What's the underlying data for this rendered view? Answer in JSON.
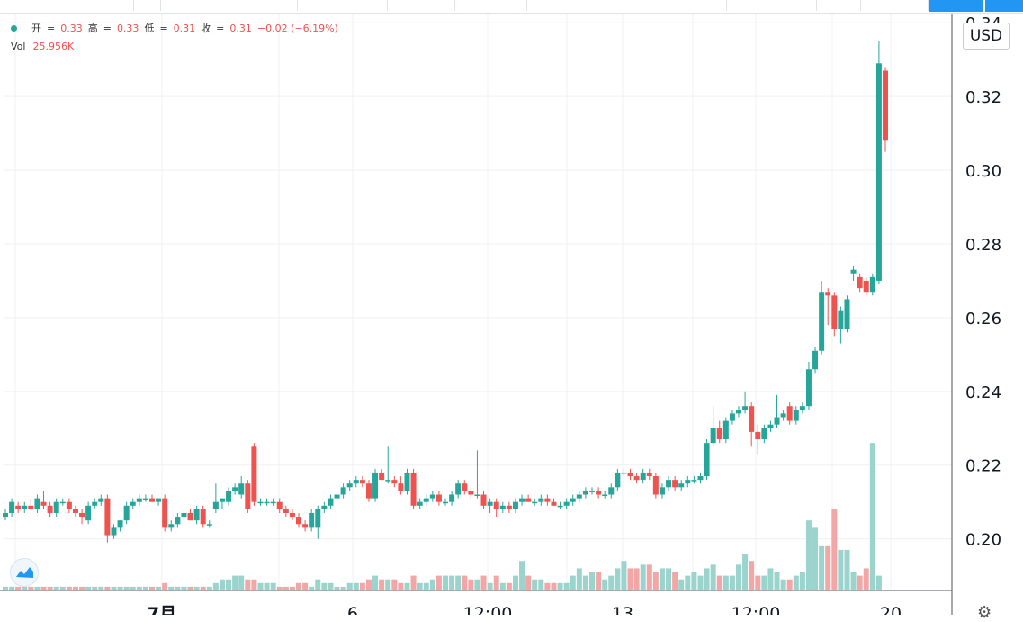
{
  "toolbar": {
    "items": [
      "↓",
      "⊕",
      "⊕",
      "▦",
      "▥",
      "⊕",
      "⊡",
      "⊞",
      "⚙",
      "⛶",
      "▭"
    ]
  },
  "legend": {
    "open_label": "开",
    "open": "0.33",
    "high_label": "高",
    "high": "0.33",
    "low_label": "低",
    "low": "0.31",
    "close_label": "收",
    "close": "0.31",
    "change": "−0.02 (−6.19%)",
    "vol_label": "Vol",
    "vol_value": "25.956K"
  },
  "currency_button": "USD",
  "settings_icon": "gear-icon",
  "colors": {
    "up": "#26a69a",
    "down": "#ef5350",
    "vol_up": "#9bd3cd",
    "vol_down": "#f2a6a6",
    "grid": "#eef0f3"
  },
  "chart_data": {
    "type": "candlestick",
    "y_axis": {
      "ticks": [
        0.2,
        0.22,
        0.24,
        0.26,
        0.28,
        0.3,
        0.32,
        0.34
      ],
      "range": [
        0.186,
        0.3425
      ]
    },
    "x_axis": {
      "ticks": [
        "7月",
        "6",
        "12:00",
        "13",
        "12:00",
        "20"
      ]
    },
    "candles": [
      [
        0.206,
        0.208,
        0.205,
        0.207
      ],
      [
        0.207,
        0.211,
        0.206,
        0.21
      ],
      [
        0.209,
        0.21,
        0.207,
        0.208
      ],
      [
        0.208,
        0.21,
        0.207,
        0.209
      ],
      [
        0.209,
        0.211,
        0.208,
        0.208
      ],
      [
        0.208,
        0.212,
        0.207,
        0.211
      ],
      [
        0.21,
        0.213,
        0.208,
        0.209
      ],
      [
        0.209,
        0.21,
        0.206,
        0.207
      ],
      [
        0.207,
        0.211,
        0.206,
        0.21
      ],
      [
        0.21,
        0.211,
        0.209,
        0.21
      ],
      [
        0.21,
        0.211,
        0.207,
        0.208
      ],
      [
        0.208,
        0.209,
        0.206,
        0.207
      ],
      [
        0.207,
        0.208,
        0.204,
        0.206
      ],
      [
        0.205,
        0.21,
        0.204,
        0.209
      ],
      [
        0.209,
        0.211,
        0.208,
        0.21
      ],
      [
        0.21,
        0.212,
        0.209,
        0.211
      ],
      [
        0.211,
        0.212,
        0.199,
        0.201
      ],
      [
        0.201,
        0.204,
        0.2,
        0.203
      ],
      [
        0.203,
        0.205,
        0.202,
        0.205
      ],
      [
        0.205,
        0.21,
        0.204,
        0.209
      ],
      [
        0.209,
        0.211,
        0.208,
        0.21
      ],
      [
        0.21,
        0.212,
        0.209,
        0.211
      ],
      [
        0.211,
        0.212,
        0.21,
        0.211
      ],
      [
        0.211,
        0.212,
        0.21,
        0.21
      ],
      [
        0.21,
        0.211,
        0.209,
        0.211
      ],
      [
        0.211,
        0.212,
        0.202,
        0.203
      ],
      [
        0.203,
        0.205,
        0.202,
        0.204
      ],
      [
        0.204,
        0.207,
        0.203,
        0.206
      ],
      [
        0.206,
        0.208,
        0.205,
        0.207
      ],
      [
        0.207,
        0.208,
        0.205,
        0.205
      ],
      [
        0.205,
        0.209,
        0.204,
        0.208
      ],
      [
        0.208,
        0.209,
        0.203,
        0.204
      ],
      [
        0.204,
        0.205,
        0.203,
        0.204
      ],
      [
        0.208,
        0.215,
        0.207,
        0.21
      ],
      [
        0.21,
        0.211,
        0.208,
        0.211
      ],
      [
        0.21,
        0.214,
        0.209,
        0.213
      ],
      [
        0.213,
        0.215,
        0.212,
        0.214
      ],
      [
        0.212,
        0.217,
        0.211,
        0.215
      ],
      [
        0.215,
        0.216,
        0.207,
        0.208
      ],
      [
        0.225,
        0.226,
        0.209,
        0.21
      ],
      [
        0.21,
        0.211,
        0.209,
        0.21
      ],
      [
        0.21,
        0.211,
        0.209,
        0.21
      ],
      [
        0.21,
        0.211,
        0.209,
        0.21
      ],
      [
        0.21,
        0.211,
        0.207,
        0.208
      ],
      [
        0.208,
        0.209,
        0.206,
        0.207
      ],
      [
        0.207,
        0.208,
        0.205,
        0.206
      ],
      [
        0.206,
        0.207,
        0.203,
        0.204
      ],
      [
        0.204,
        0.205,
        0.202,
        0.203
      ],
      [
        0.203,
        0.208,
        0.202,
        0.207
      ],
      [
        0.203,
        0.209,
        0.2,
        0.208
      ],
      [
        0.208,
        0.21,
        0.207,
        0.209
      ],
      [
        0.209,
        0.212,
        0.208,
        0.211
      ],
      [
        0.211,
        0.213,
        0.21,
        0.212
      ],
      [
        0.212,
        0.215,
        0.211,
        0.214
      ],
      [
        0.214,
        0.216,
        0.213,
        0.215
      ],
      [
        0.215,
        0.217,
        0.214,
        0.216
      ],
      [
        0.216,
        0.217,
        0.214,
        0.215
      ],
      [
        0.215,
        0.216,
        0.21,
        0.211
      ],
      [
        0.211,
        0.219,
        0.21,
        0.218
      ],
      [
        0.218,
        0.219,
        0.216,
        0.216
      ],
      [
        0.216,
        0.225,
        0.215,
        0.216
      ],
      [
        0.216,
        0.217,
        0.214,
        0.215
      ],
      [
        0.215,
        0.217,
        0.212,
        0.213
      ],
      [
        0.213,
        0.219,
        0.212,
        0.218
      ],
      [
        0.218,
        0.219,
        0.208,
        0.209
      ],
      [
        0.209,
        0.211,
        0.208,
        0.21
      ],
      [
        0.21,
        0.212,
        0.209,
        0.211
      ],
      [
        0.211,
        0.213,
        0.21,
        0.212
      ],
      [
        0.212,
        0.213,
        0.209,
        0.21
      ],
      [
        0.21,
        0.211,
        0.209,
        0.21
      ],
      [
        0.21,
        0.213,
        0.209,
        0.212
      ],
      [
        0.212,
        0.216,
        0.211,
        0.215
      ],
      [
        0.215,
        0.216,
        0.212,
        0.213
      ],
      [
        0.213,
        0.214,
        0.211,
        0.212
      ],
      [
        0.212,
        0.224,
        0.211,
        0.212
      ],
      [
        0.212,
        0.213,
        0.208,
        0.209
      ],
      [
        0.209,
        0.211,
        0.207,
        0.21
      ],
      [
        0.21,
        0.211,
        0.206,
        0.208
      ],
      [
        0.208,
        0.21,
        0.207,
        0.209
      ],
      [
        0.209,
        0.21,
        0.207,
        0.208
      ],
      [
        0.208,
        0.211,
        0.207,
        0.21
      ],
      [
        0.21,
        0.212,
        0.209,
        0.211
      ],
      [
        0.211,
        0.212,
        0.21,
        0.21
      ],
      [
        0.21,
        0.211,
        0.209,
        0.21
      ],
      [
        0.21,
        0.212,
        0.209,
        0.211
      ],
      [
        0.211,
        0.212,
        0.209,
        0.21
      ],
      [
        0.21,
        0.211,
        0.209,
        0.209
      ],
      [
        0.209,
        0.21,
        0.208,
        0.209
      ],
      [
        0.209,
        0.211,
        0.208,
        0.21
      ],
      [
        0.21,
        0.212,
        0.209,
        0.211
      ],
      [
        0.211,
        0.213,
        0.21,
        0.212
      ],
      [
        0.212,
        0.214,
        0.211,
        0.213
      ],
      [
        0.213,
        0.214,
        0.212,
        0.213
      ],
      [
        0.213,
        0.214,
        0.211,
        0.212
      ],
      [
        0.212,
        0.213,
        0.211,
        0.212
      ],
      [
        0.212,
        0.215,
        0.211,
        0.214
      ],
      [
        0.214,
        0.219,
        0.213,
        0.218
      ],
      [
        0.218,
        0.219,
        0.217,
        0.218
      ],
      [
        0.218,
        0.219,
        0.216,
        0.217
      ],
      [
        0.217,
        0.218,
        0.215,
        0.216
      ],
      [
        0.216,
        0.219,
        0.215,
        0.218
      ],
      [
        0.218,
        0.219,
        0.216,
        0.217
      ],
      [
        0.217,
        0.218,
        0.211,
        0.212
      ],
      [
        0.212,
        0.215,
        0.211,
        0.214
      ],
      [
        0.214,
        0.217,
        0.213,
        0.216
      ],
      [
        0.216,
        0.217,
        0.213,
        0.214
      ],
      [
        0.214,
        0.216,
        0.213,
        0.215
      ],
      [
        0.215,
        0.217,
        0.214,
        0.216
      ],
      [
        0.216,
        0.217,
        0.215,
        0.216
      ],
      [
        0.216,
        0.218,
        0.215,
        0.217
      ],
      [
        0.217,
        0.227,
        0.216,
        0.226
      ],
      [
        0.226,
        0.236,
        0.225,
        0.23
      ],
      [
        0.23,
        0.232,
        0.226,
        0.227
      ],
      [
        0.227,
        0.233,
        0.226,
        0.232
      ],
      [
        0.232,
        0.235,
        0.231,
        0.234
      ],
      [
        0.234,
        0.236,
        0.233,
        0.235
      ],
      [
        0.235,
        0.24,
        0.234,
        0.236
      ],
      [
        0.236,
        0.237,
        0.225,
        0.229
      ],
      [
        0.229,
        0.231,
        0.223,
        0.227
      ],
      [
        0.227,
        0.231,
        0.226,
        0.23
      ],
      [
        0.23,
        0.232,
        0.229,
        0.231
      ],
      [
        0.231,
        0.239,
        0.23,
        0.233
      ],
      [
        0.233,
        0.235,
        0.232,
        0.234
      ],
      [
        0.236,
        0.237,
        0.231,
        0.232
      ],
      [
        0.232,
        0.236,
        0.231,
        0.235
      ],
      [
        0.235,
        0.237,
        0.234,
        0.236
      ],
      [
        0.236,
        0.248,
        0.235,
        0.246
      ],
      [
        0.246,
        0.252,
        0.245,
        0.251
      ],
      [
        0.251,
        0.27,
        0.25,
        0.267
      ],
      [
        0.267,
        0.268,
        0.258,
        0.266
      ],
      [
        0.266,
        0.267,
        0.255,
        0.257
      ],
      [
        0.257,
        0.263,
        0.253,
        0.262
      ],
      [
        0.257,
        0.266,
        0.256,
        0.265
      ],
      [
        0.272,
        0.274,
        0.27,
        0.273
      ],
      [
        0.271,
        0.272,
        0.267,
        0.268
      ],
      [
        0.27,
        0.271,
        0.266,
        0.267
      ],
      [
        0.267,
        0.272,
        0.266,
        0.271
      ],
      [
        0.27,
        0.335,
        0.269,
        0.329
      ],
      [
        0.327,
        0.328,
        0.305,
        0.308
      ]
    ],
    "volume": [
      0.187,
      0.187,
      0.187,
      0.187,
      0.187,
      0.187,
      0.187,
      0.187,
      0.187,
      0.187,
      0.187,
      0.187,
      0.187,
      0.187,
      0.187,
      0.187,
      0.187,
      0.187,
      0.187,
      0.187,
      0.187,
      0.187,
      0.187,
      0.187,
      0.187,
      0.188,
      0.187,
      0.187,
      0.187,
      0.187,
      0.187,
      0.187,
      0.187,
      0.188,
      0.189,
      0.189,
      0.19,
      0.19,
      0.189,
      0.189,
      0.188,
      0.188,
      0.188,
      0.187,
      0.187,
      0.187,
      0.188,
      0.188,
      0.187,
      0.189,
      0.188,
      0.188,
      0.187,
      0.187,
      0.188,
      0.188,
      0.188,
      0.189,
      0.19,
      0.189,
      0.189,
      0.189,
      0.188,
      0.188,
      0.19,
      0.188,
      0.188,
      0.189,
      0.19,
      0.19,
      0.19,
      0.19,
      0.19,
      0.189,
      0.189,
      0.19,
      0.188,
      0.19,
      0.188,
      0.188,
      0.19,
      0.194,
      0.19,
      0.189,
      0.189,
      0.188,
      0.188,
      0.188,
      0.188,
      0.19,
      0.192,
      0.19,
      0.191,
      0.191,
      0.189,
      0.19,
      0.192,
      0.194,
      0.192,
      0.192,
      0.193,
      0.193,
      0.191,
      0.192,
      0.192,
      0.191,
      0.189,
      0.19,
      0.191,
      0.19,
      0.192,
      0.193,
      0.19,
      0.19,
      0.19,
      0.193,
      0.196,
      0.194,
      0.19,
      0.19,
      0.192,
      0.191,
      0.189,
      0.189,
      0.19,
      0.191,
      0.205,
      0.203,
      0.198,
      0.198,
      0.208,
      0.197,
      0.197,
      0.191,
      0.19,
      0.192,
      0.226,
      0.19
    ]
  }
}
